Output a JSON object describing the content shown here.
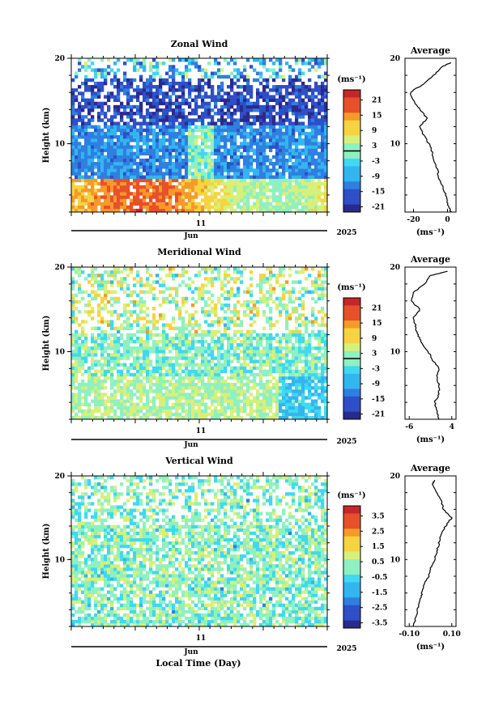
{
  "chart_data": [
    {
      "type": "heatmap",
      "title": "Zonal Wind",
      "ylabel": "Height (km)",
      "ylim": [
        2,
        20
      ],
      "yticks": [
        "20",
        "10"
      ],
      "xticks": [
        "11"
      ],
      "time_label": "Jun",
      "year_label": "2025",
      "unit_label": "(ms⁻¹)",
      "colorbar_ticks": [
        "21",
        "15",
        "9",
        "3",
        "-3",
        "-9",
        "-15",
        "-21"
      ],
      "colorbar_range": [
        -24,
        24
      ],
      "zero_contour": true,
      "profile": {
        "title": "Average",
        "xlabel": "(ms⁻¹)",
        "xticks": [
          "-20",
          "0"
        ],
        "xlim": [
          -25,
          5
        ],
        "height": [
          2,
          3,
          4,
          5,
          6,
          7,
          8,
          9,
          10,
          11,
          12,
          13,
          14,
          15,
          16,
          17,
          18,
          19,
          19.5
        ],
        "values": [
          2,
          0,
          -1,
          -3,
          -5,
          -6,
          -8,
          -9,
          -11,
          -14,
          -16,
          -12,
          -16,
          -20,
          -22,
          -14,
          -8,
          -3,
          2
        ]
      }
    },
    {
      "type": "heatmap",
      "title": "Meridional Wind",
      "ylabel": "Height (km)",
      "ylim": [
        2,
        20
      ],
      "yticks": [
        "20",
        "10"
      ],
      "xticks": [
        "11"
      ],
      "time_label": "Jun",
      "year_label": "2025",
      "unit_label": "(ms⁻¹)",
      "colorbar_ticks": [
        "21",
        "15",
        "9",
        "3",
        "-3",
        "-9",
        "-15",
        "-21"
      ],
      "colorbar_range": [
        -24,
        24
      ],
      "zero_contour": true,
      "profile": {
        "title": "Average",
        "xlabel": "(ms⁻¹)",
        "xticks": [
          "-6",
          "4"
        ],
        "xlim": [
          -7,
          5
        ],
        "height": [
          2,
          3,
          4,
          5,
          6,
          7,
          8,
          9,
          10,
          11,
          12,
          13,
          14,
          15,
          16,
          17,
          18,
          19,
          19.5
        ],
        "values": [
          1,
          0.5,
          0,
          1,
          1,
          0.5,
          1,
          -0.5,
          -1.5,
          -3,
          -4,
          -4.5,
          -5,
          -3.5,
          -5.5,
          -5,
          -2.5,
          -1,
          3
        ]
      }
    },
    {
      "type": "heatmap",
      "title": "Vertical Wind",
      "ylabel": "Height (km)",
      "xlabel": "Local Time (Day)",
      "ylim": [
        2,
        20
      ],
      "yticks": [
        "20",
        "10"
      ],
      "xticks": [
        "11"
      ],
      "time_label": "Jun",
      "year_label": "2025",
      "unit_label": "(ms⁻¹)",
      "colorbar_ticks": [
        "3.5",
        "2.5",
        "1.5",
        "0.5",
        "-0.5",
        "-1.5",
        "-2.5",
        "-3.5"
      ],
      "colorbar_range": [
        -4,
        4
      ],
      "zero_contour": false,
      "profile": {
        "title": "Average",
        "xlabel": "(ms⁻¹)",
        "xticks": [
          "-0.10",
          "0.10"
        ],
        "xlim": [
          -0.12,
          0.12
        ],
        "height": [
          2,
          3,
          4,
          5,
          6,
          7,
          8,
          9,
          10,
          11,
          12,
          13,
          14,
          15,
          16,
          17,
          18,
          19,
          19.5
        ],
        "values": [
          -0.08,
          -0.07,
          -0.06,
          -0.05,
          -0.04,
          -0.03,
          -0.01,
          0.0,
          0.02,
          0.03,
          0.04,
          0.05,
          0.07,
          0.1,
          0.06,
          0.05,
          0.03,
          0.01,
          0.02
        ]
      }
    }
  ],
  "colors": {
    "jet": [
      "#2a2a8c",
      "#2e4fc8",
      "#2f7fe0",
      "#33b5ef",
      "#3fd9f0",
      "#8ff0c0",
      "#d7f07a",
      "#f5d440",
      "#f59a2a",
      "#e8502a",
      "#c8242a"
    ]
  }
}
